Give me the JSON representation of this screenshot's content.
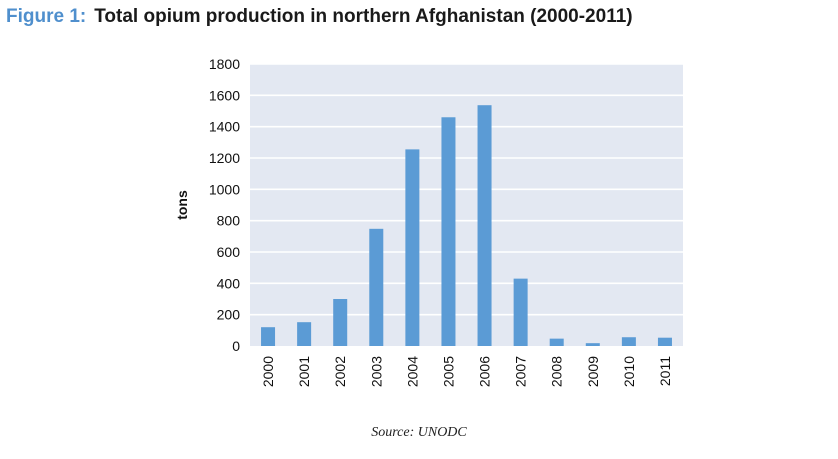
{
  "figure": {
    "label": "Figure 1:",
    "title": "Total opium production in northern Afghanistan (2000-2011)",
    "source": "Source: UNODC"
  },
  "colors": {
    "title_label": "#4f8fcd",
    "bar": "#5b9bd5",
    "plot_background": "#e3e8f2",
    "gridline": "#ffffff"
  },
  "chart_data": {
    "type": "bar",
    "title": "Total opium production in northern Afghanistan (2000-2011)",
    "xlabel": "",
    "ylabel": "tons",
    "categories": [
      "2000",
      "2001",
      "2002",
      "2003",
      "2004",
      "2005",
      "2006",
      "2007",
      "2008",
      "2009",
      "2010",
      "2011"
    ],
    "values": [
      120,
      152,
      300,
      748,
      1255,
      1460,
      1537,
      430,
      47,
      18,
      56,
      53
    ],
    "ylim": [
      0,
      1800
    ],
    "yticks": [
      0,
      200,
      400,
      600,
      800,
      1000,
      1200,
      1400,
      1600,
      1800
    ],
    "grid": true,
    "legend": "none"
  }
}
